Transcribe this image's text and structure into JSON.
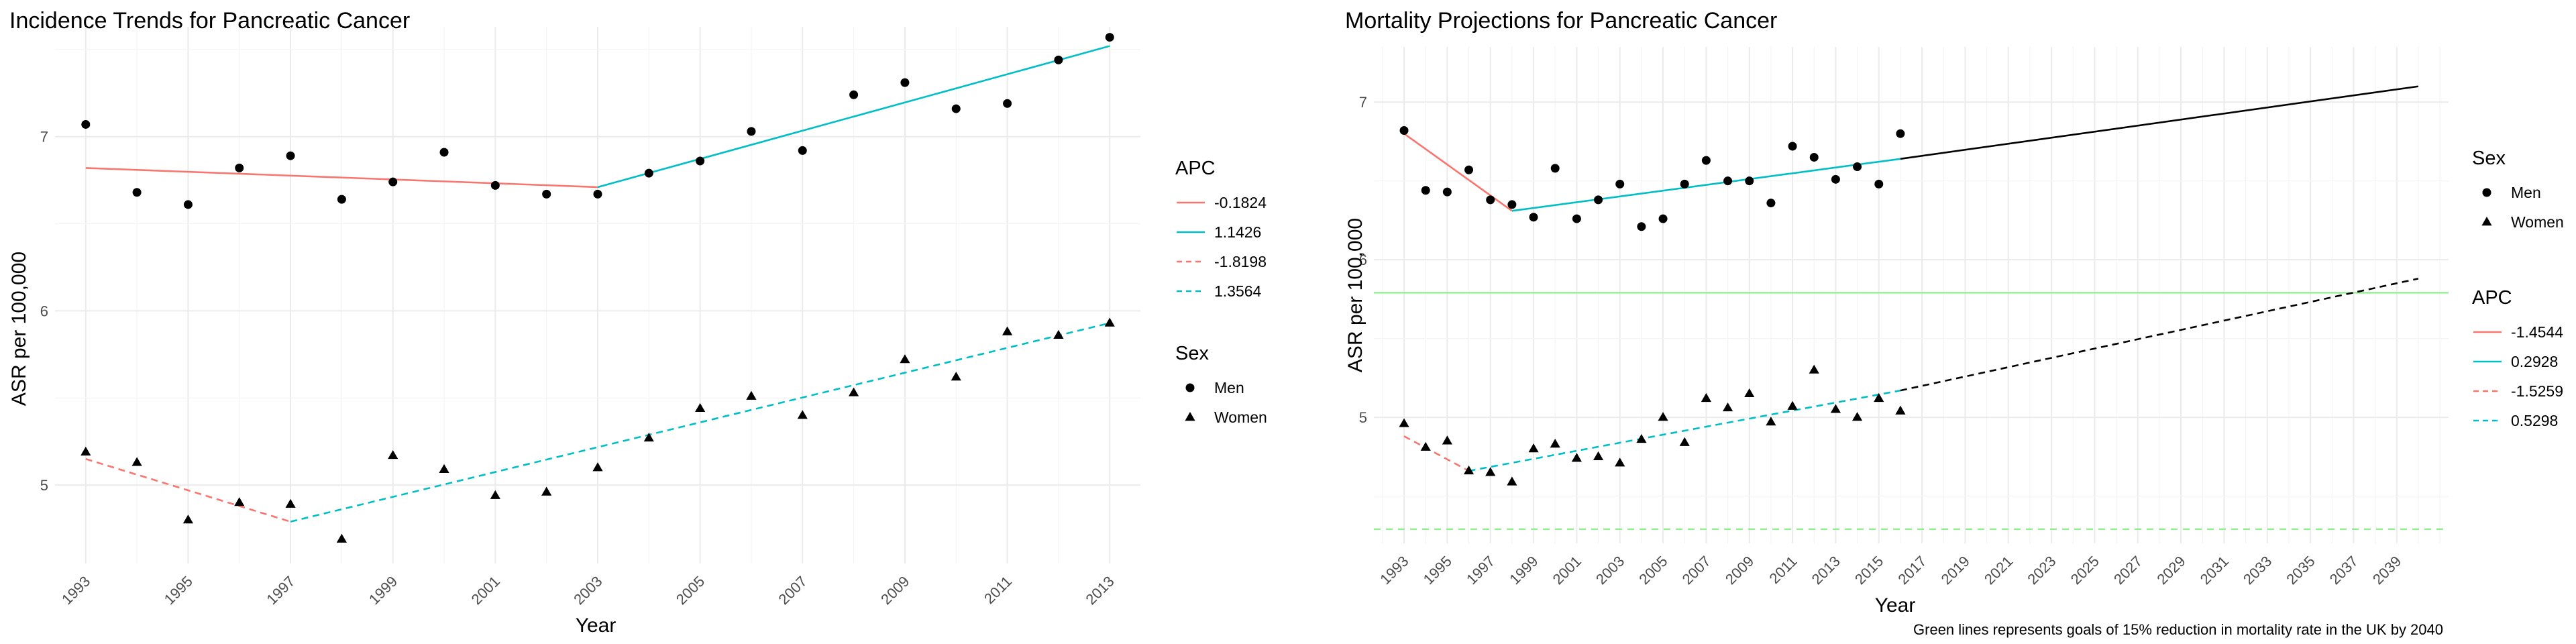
{
  "colors": {
    "red": "#F8766D",
    "cyan": "#00BFC4",
    "green": "#90EE90",
    "black": "#000000",
    "grid_major": "#ebebeb",
    "grid_minor": "#f4f4f4"
  },
  "chart_data": [
    {
      "type": "scatter",
      "title": "Incidence Trends for Pancreatic Cancer",
      "xlabel": "Year",
      "ylabel": "ASR per 100,000",
      "xlim": [
        1992.4,
        2013.6
      ],
      "ylim": [
        4.55,
        7.63
      ],
      "x_ticks": [
        1993,
        1995,
        1997,
        1999,
        2001,
        2003,
        2005,
        2007,
        2009,
        2011,
        2013
      ],
      "y_ticks": [
        5,
        6,
        7
      ],
      "grid": true,
      "legend": {
        "position": "right",
        "apc_title": "APC",
        "apc_entries": [
          {
            "label": "-0.1824",
            "color": "#F8766D",
            "dash": "solid"
          },
          {
            "label": "1.1426",
            "color": "#00BFC4",
            "dash": "solid"
          },
          {
            "label": "-1.8198",
            "color": "#F8766D",
            "dash": "dashed"
          },
          {
            "label": "1.3564",
            "color": "#00BFC4",
            "dash": "dashed"
          }
        ],
        "sex_title": "Sex",
        "sex_entries": [
          {
            "label": "Men",
            "shape": "circle"
          },
          {
            "label": "Women",
            "shape": "triangle"
          }
        ]
      },
      "series": [
        {
          "name": "Men",
          "shape": "circle",
          "x": [
            1993,
            1994,
            1995,
            1996,
            1997,
            1998,
            1999,
            2000,
            2001,
            2002,
            2003,
            2004,
            2005,
            2006,
            2007,
            2008,
            2009,
            2010,
            2011,
            2012,
            2013
          ],
          "y": [
            7.07,
            6.68,
            6.61,
            6.82,
            6.89,
            6.64,
            6.74,
            6.91,
            6.72,
            6.67,
            6.67,
            6.79,
            6.86,
            7.03,
            6.92,
            7.24,
            7.31,
            7.16,
            7.19,
            7.44,
            7.57
          ]
        },
        {
          "name": "Women",
          "shape": "triangle",
          "x": [
            1993,
            1994,
            1995,
            1996,
            1997,
            1998,
            1999,
            2000,
            2001,
            2002,
            2003,
            2004,
            2005,
            2006,
            2007,
            2008,
            2009,
            2010,
            2011,
            2012,
            2013
          ],
          "y": [
            5.19,
            5.13,
            4.8,
            4.9,
            4.89,
            4.69,
            5.17,
            5.09,
            4.94,
            4.96,
            5.1,
            5.27,
            5.44,
            5.51,
            5.4,
            5.53,
            5.72,
            5.62,
            5.88,
            5.86,
            5.93
          ]
        }
      ],
      "trend_lines": [
        {
          "x": [
            1993,
            2003
          ],
          "y": [
            6.82,
            6.71
          ],
          "color": "#F8766D",
          "dash": "solid"
        },
        {
          "x": [
            2003,
            2013
          ],
          "y": [
            6.71,
            7.52
          ],
          "color": "#00BFC4",
          "dash": "solid"
        },
        {
          "x": [
            1993,
            1997
          ],
          "y": [
            5.15,
            4.79
          ],
          "color": "#F8766D",
          "dash": "dashed"
        },
        {
          "x": [
            1997,
            2013
          ],
          "y": [
            4.79,
            5.93
          ],
          "color": "#00BFC4",
          "dash": "dashed"
        }
      ]
    },
    {
      "type": "scatter",
      "title": "Mortality Projections for Pancreatic Cancer",
      "xlabel": "Year",
      "ylabel": "ASR per 100,000",
      "caption": "Green lines represents goals of 15% reduction in mortality rate in the UK by 2040",
      "xlim": [
        1991.6,
        2041.4
      ],
      "ylim": [
        4.2,
        7.35
      ],
      "x_ticks": [
        1993,
        1995,
        1997,
        1999,
        2001,
        2003,
        2005,
        2007,
        2009,
        2011,
        2013,
        2015,
        2017,
        2019,
        2021,
        2023,
        2025,
        2027,
        2029,
        2031,
        2033,
        2035,
        2037,
        2039
      ],
      "y_ticks": [
        5,
        6,
        7
      ],
      "grid": true,
      "legend": {
        "position": "right",
        "sex_title": "Sex",
        "sex_entries": [
          {
            "label": "Men",
            "shape": "circle"
          },
          {
            "label": "Women",
            "shape": "triangle"
          }
        ],
        "apc_title": "APC",
        "apc_entries": [
          {
            "label": "-1.4544",
            "color": "#F8766D",
            "dash": "solid"
          },
          {
            "label": "0.2928",
            "color": "#00BFC4",
            "dash": "solid"
          },
          {
            "label": "-1.5259",
            "color": "#F8766D",
            "dash": "dashed"
          },
          {
            "label": "0.5298",
            "color": "#00BFC4",
            "dash": "dashed"
          }
        ]
      },
      "series": [
        {
          "name": "Men",
          "shape": "circle",
          "x": [
            1993,
            1994,
            1995,
            1996,
            1997,
            1998,
            1999,
            2000,
            2001,
            2002,
            2003,
            2004,
            2005,
            2006,
            2007,
            2008,
            2009,
            2010,
            2011,
            2012,
            2013,
            2014,
            2015,
            2016
          ],
          "y": [
            6.82,
            6.44,
            6.43,
            6.57,
            6.38,
            6.35,
            6.27,
            6.58,
            6.26,
            6.38,
            6.48,
            6.21,
            6.26,
            6.48,
            6.63,
            6.5,
            6.5,
            6.36,
            6.72,
            6.65,
            6.51,
            6.59,
            6.48,
            6.8
          ]
        },
        {
          "name": "Women",
          "shape": "triangle",
          "x": [
            1993,
            1994,
            1995,
            1996,
            1997,
            1998,
            1999,
            2000,
            2001,
            2002,
            2003,
            2004,
            2005,
            2006,
            2007,
            2008,
            2009,
            2010,
            2011,
            2012,
            2013,
            2014,
            2015,
            2016
          ],
          "y": [
            4.96,
            4.81,
            4.85,
            4.66,
            4.65,
            4.59,
            4.8,
            4.83,
            4.74,
            4.75,
            4.71,
            4.86,
            5.0,
            4.84,
            5.12,
            5.06,
            5.15,
            4.97,
            5.07,
            5.3,
            5.05,
            5.0,
            5.12,
            5.04
          ]
        }
      ],
      "trend_lines": [
        {
          "x": [
            1993,
            1998
          ],
          "y": [
            6.8,
            6.31
          ],
          "color": "#F8766D",
          "dash": "solid"
        },
        {
          "x": [
            1998,
            2016
          ],
          "y": [
            6.31,
            6.64
          ],
          "color": "#00BFC4",
          "dash": "solid"
        },
        {
          "x": [
            2016,
            2040
          ],
          "y": [
            6.64,
            7.1
          ],
          "color": "#000000",
          "dash": "solid"
        },
        {
          "x": [
            1993,
            1996
          ],
          "y": [
            4.88,
            4.66
          ],
          "color": "#F8766D",
          "dash": "dashed"
        },
        {
          "x": [
            1996,
            2016
          ],
          "y": [
            4.66,
            5.17
          ],
          "color": "#00BFC4",
          "dash": "dashed"
        },
        {
          "x": [
            2016,
            2040
          ],
          "y": [
            5.17,
            5.88
          ],
          "color": "#000000",
          "dash": "dashed"
        }
      ],
      "reference_lines": [
        {
          "y": 5.79,
          "color": "#90EE90",
          "dash": "solid"
        },
        {
          "y": 4.29,
          "color": "#90EE90",
          "dash": "dashed"
        }
      ]
    }
  ]
}
